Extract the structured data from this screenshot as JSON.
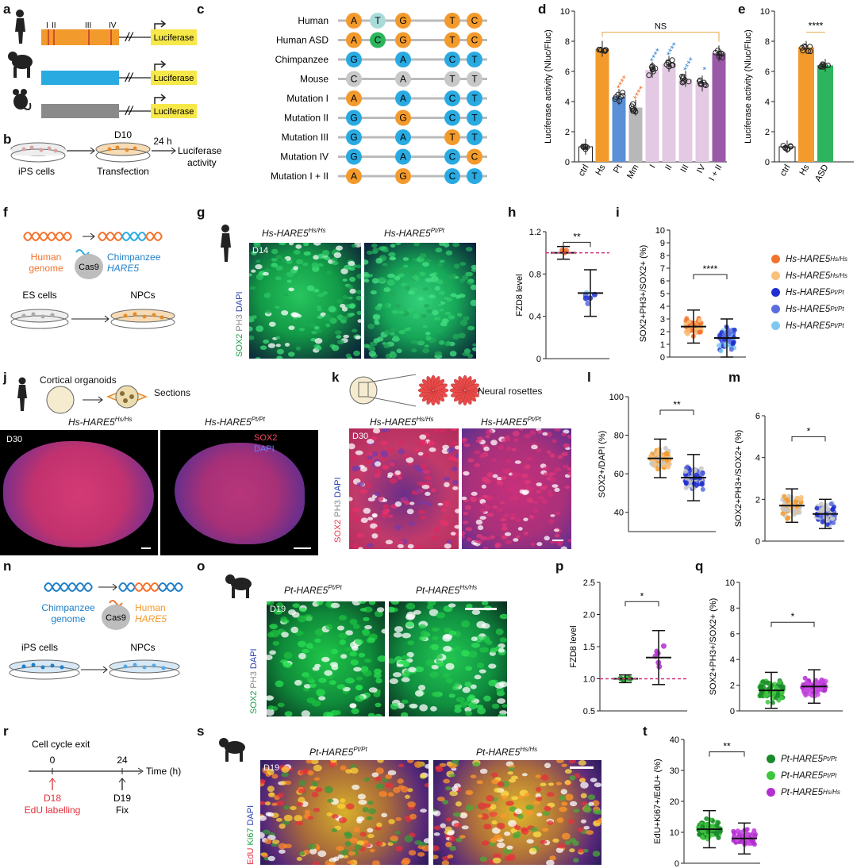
{
  "panel_labels": [
    "a",
    "b",
    "c",
    "d",
    "e",
    "f",
    "g",
    "h",
    "i",
    "j",
    "k",
    "l",
    "m",
    "n",
    "o",
    "p",
    "q",
    "r",
    "s",
    "t"
  ],
  "panel_a": {
    "roman": [
      "I",
      "II",
      "III",
      "IV"
    ],
    "reporter": "Luciferase"
  },
  "panel_b": {
    "day": "D10",
    "step1": "iPS cells",
    "step2": "Transfection",
    "time": "24 h",
    "readout_l1": "Luciferase",
    "readout_l2": "activity"
  },
  "panel_c": {
    "rows": [
      {
        "label": "Human",
        "bases": [
          "A",
          "T",
          "G",
          "T",
          "C"
        ],
        "colors": [
          "#f39a2c",
          "#a9dcd9",
          "#f39a2c",
          "#f39a2c",
          "#f39a2c"
        ]
      },
      {
        "label": "Human ASD",
        "bases": [
          "A",
          "C",
          "G",
          "T",
          "C"
        ],
        "colors": [
          "#f39a2c",
          "#2db55d",
          "#f39a2c",
          "#f39a2c",
          "#f39a2c"
        ]
      },
      {
        "label": "Chimpanzee",
        "bases": [
          "G",
          "A",
          "C",
          "T"
        ],
        "colors": [
          "#29abe2",
          "#29abe2",
          "#29abe2",
          "#29abe2"
        ]
      },
      {
        "label": "Mouse",
        "bases": [
          "C",
          "A",
          "T",
          "T"
        ],
        "colors": [
          "#c8c8c8",
          "#c8c8c8",
          "#c8c8c8",
          "#c8c8c8"
        ]
      },
      {
        "label": "Mutation I",
        "bases": [
          "A",
          "A",
          "C",
          "T"
        ],
        "colors": [
          "#f39a2c",
          "#29abe2",
          "#29abe2",
          "#29abe2"
        ]
      },
      {
        "label": "Mutation II",
        "bases": [
          "G",
          "G",
          "C",
          "T"
        ],
        "colors": [
          "#29abe2",
          "#f39a2c",
          "#29abe2",
          "#29abe2"
        ]
      },
      {
        "label": "Mutation III",
        "bases": [
          "G",
          "A",
          "T",
          "T"
        ],
        "colors": [
          "#29abe2",
          "#29abe2",
          "#f39a2c",
          "#29abe2"
        ]
      },
      {
        "label": "Mutation IV",
        "bases": [
          "G",
          "A",
          "C",
          "C"
        ],
        "colors": [
          "#29abe2",
          "#29abe2",
          "#29abe2",
          "#f39a2c"
        ]
      },
      {
        "label": "Mutation I + II",
        "bases": [
          "A",
          "G",
          "C",
          "T"
        ],
        "colors": [
          "#f39a2c",
          "#f39a2c",
          "#29abe2",
          "#29abe2"
        ]
      }
    ]
  },
  "chart_data": [
    {
      "id": "d",
      "type": "bar",
      "ylabel": "Luciferase activity (Nluc/Fluc)",
      "ylim": [
        0,
        10
      ],
      "yticks": [
        0,
        2,
        4,
        6,
        8,
        10
      ],
      "categories": [
        "ctrl",
        "Hs",
        "Pt",
        "Mm",
        "I",
        "II",
        "III",
        "IV",
        "I + II"
      ],
      "values": [
        1.0,
        7.5,
        4.3,
        3.6,
        6.1,
        6.5,
        5.5,
        5.2,
        7.2
      ],
      "colors": [
        "#ffffff",
        "#f39a2c",
        "#5b8fd6",
        "#b8b8b8",
        "#e3c9e3",
        "#e3c9e3",
        "#e3c9e3",
        "#e3c9e3",
        "#9a5aa8"
      ],
      "stars": [
        {
          "i": 2,
          "t": "****",
          "c": "#f3722c"
        },
        {
          "i": 3,
          "t": "****",
          "c": "#f3722c"
        },
        {
          "i": 4,
          "t": "****",
          "c": "#3a86d4"
        },
        {
          "i": 5,
          "t": "****",
          "c": "#3a86d4"
        },
        {
          "i": 6,
          "t": "****",
          "c": "#3a86d4"
        },
        {
          "i": 7,
          "t": "*",
          "c": "#3a86d4"
        }
      ],
      "bracket": "NS"
    },
    {
      "id": "e",
      "type": "bar",
      "ylabel": "Luciferase activity (Nluc/Fluc)",
      "ylim": [
        0,
        10
      ],
      "yticks": [
        0,
        2,
        4,
        6,
        8,
        10
      ],
      "categories": [
        "ctrl",
        "Hs",
        "ASD"
      ],
      "values": [
        1.0,
        7.6,
        6.4
      ],
      "colors": [
        "#ffffff",
        "#f39a2c",
        "#2db55d"
      ],
      "bracket": "****"
    },
    {
      "id": "h",
      "type": "scatter",
      "ylabel": "FZD8 level",
      "ylim": [
        0,
        1.2
      ],
      "yticks": [
        0,
        0.4,
        0.8,
        1.2
      ],
      "sig": "**",
      "reference": 1.0
    },
    {
      "id": "i",
      "type": "scatter",
      "ylabel": "SOX2+PH3+/SOX2+ (%)",
      "ylim": [
        0,
        10
      ],
      "yticks": [
        0,
        1,
        2,
        3,
        4,
        5,
        6,
        7,
        8,
        9,
        10
      ],
      "sig": "****",
      "means": [
        2.4,
        1.5
      ]
    },
    {
      "id": "l",
      "type": "scatter",
      "ylabel": "SOX2+/DAPI (%)",
      "ylim": [
        30,
        100
      ],
      "yticks": [
        40,
        60,
        80,
        100
      ],
      "sig": "**",
      "means": [
        68,
        58
      ]
    },
    {
      "id": "m",
      "type": "scatter",
      "ylabel": "SOX2+PH3+/SOX2+ (%)",
      "ylim": [
        0,
        6
      ],
      "yticks": [
        0,
        2,
        4,
        6
      ],
      "sig": "*",
      "means": [
        1.7,
        1.3
      ]
    },
    {
      "id": "p",
      "type": "scatter",
      "ylabel": "FZD8 level",
      "ylim": [
        0.5,
        2.5
      ],
      "yticks": [
        0.5,
        1.0,
        1.5,
        2.0,
        2.5
      ],
      "sig": "*",
      "reference": 1.0,
      "means": [
        1.0,
        1.33
      ]
    },
    {
      "id": "q",
      "type": "scatter",
      "ylabel": "SOX2+PH3+/SOX2+ (%)",
      "ylim": [
        0,
        10
      ],
      "yticks": [
        0,
        2,
        4,
        6,
        8,
        10
      ],
      "sig": "*",
      "means": [
        1.6,
        1.9
      ]
    },
    {
      "id": "t",
      "type": "scatter",
      "ylabel": "EdU+Ki67+/EdU+ (%)",
      "ylim": [
        0,
        40
      ],
      "yticks": [
        0,
        10,
        20,
        30,
        40
      ],
      "sig": "**",
      "means": [
        11,
        8
      ]
    }
  ],
  "legend_i": [
    {
      "text": "Hs-HARE5",
      "sup": "Hs/Hs",
      "color": "#f3722c"
    },
    {
      "text": "Hs-HARE5",
      "sup": "Hs/Hs",
      "color": "#f8c07a"
    },
    {
      "text": "Hs-HARE5",
      "sup": "Pt/Pt",
      "color": "#1f2fd0"
    },
    {
      "text": "Hs-HARE5",
      "sup": "Pt/Pt",
      "color": "#5b6be0"
    },
    {
      "text": "Hs-HARE5",
      "sup": "Pt/Pt",
      "color": "#7ec8f0"
    }
  ],
  "legend_t": [
    {
      "text": "Pt-HARE5",
      "sup": "Pt/Pt",
      "color": "#1a8a2a"
    },
    {
      "text": "Pt-HARE5",
      "sup": "Pt/Pt",
      "color": "#3fc63f"
    },
    {
      "text": "Pt-HARE5",
      "sup": "Hs/Hs",
      "color": "#b22fd0"
    }
  ],
  "panel_f": {
    "genome_l1": "Human",
    "genome_l2": "genome",
    "target_l1": "Chimpanzee",
    "target_l2": "HARE5",
    "enzyme": "Cas9",
    "cells1": "ES cells",
    "cells2": "NPCs"
  },
  "panel_n": {
    "genome_l1": "Chimpanzee",
    "genome_l2": "genome",
    "target_l1": "Human",
    "target_l2": "HARE5",
    "enzyme": "Cas9",
    "cells1": "iPS cells",
    "cells2": "NPCs"
  },
  "panel_g": {
    "day": "D14",
    "t1": "Hs-HARE5",
    "s1": "Hs/Hs",
    "t2": "Hs-HARE5",
    "s2": "Pt/Pt",
    "stain": [
      "SOX2",
      "PH3",
      "DAPI"
    ]
  },
  "panel_j": {
    "title": "Cortical organoids",
    "sections": "Sections",
    "day": "D30",
    "t1": "Hs-HARE5",
    "s1": "Hs/Hs",
    "t2": "Hs-HARE5",
    "s2": "Pt/Pt",
    "stain": [
      "SOX2",
      "DAPI"
    ]
  },
  "panel_k": {
    "rosettes": "Neural rosettes",
    "day": "D30",
    "t1": "Hs-HARE5",
    "s1": "Hs/Hs",
    "t2": "Hs-HARE5",
    "s2": "Pt/Pt",
    "stain": [
      "SOX2",
      "PH3",
      "DAPI"
    ]
  },
  "panel_o": {
    "day": "D19",
    "t1": "Pt-HARE5",
    "s1": "Pt/Pt",
    "t2": "Pt-HARE5",
    "s2": "Hs/Hs",
    "stain": [
      "SOX2",
      "PH3",
      "DAPI"
    ]
  },
  "panel_r": {
    "title": "Cell cycle exit",
    "t0": "0",
    "t24": "24",
    "axis": "Time (h)",
    "ev1_l1": "D18",
    "ev1_l2": "EdU labelling",
    "ev2_l1": "D19",
    "ev2_l2": "Fix"
  },
  "panel_s": {
    "day": "D19",
    "t1": "Pt-HARE5",
    "s1": "Pt/Pt",
    "t2": "Pt-HARE5",
    "s2": "Hs/Hs",
    "stain": [
      "EdU",
      "Ki67",
      "DAPI"
    ]
  },
  "colors": {
    "orange": "#f39a2c",
    "blue": "#29abe2",
    "green": "#2db55d",
    "yellow": "#f7e84a",
    "gray": "#888888"
  }
}
